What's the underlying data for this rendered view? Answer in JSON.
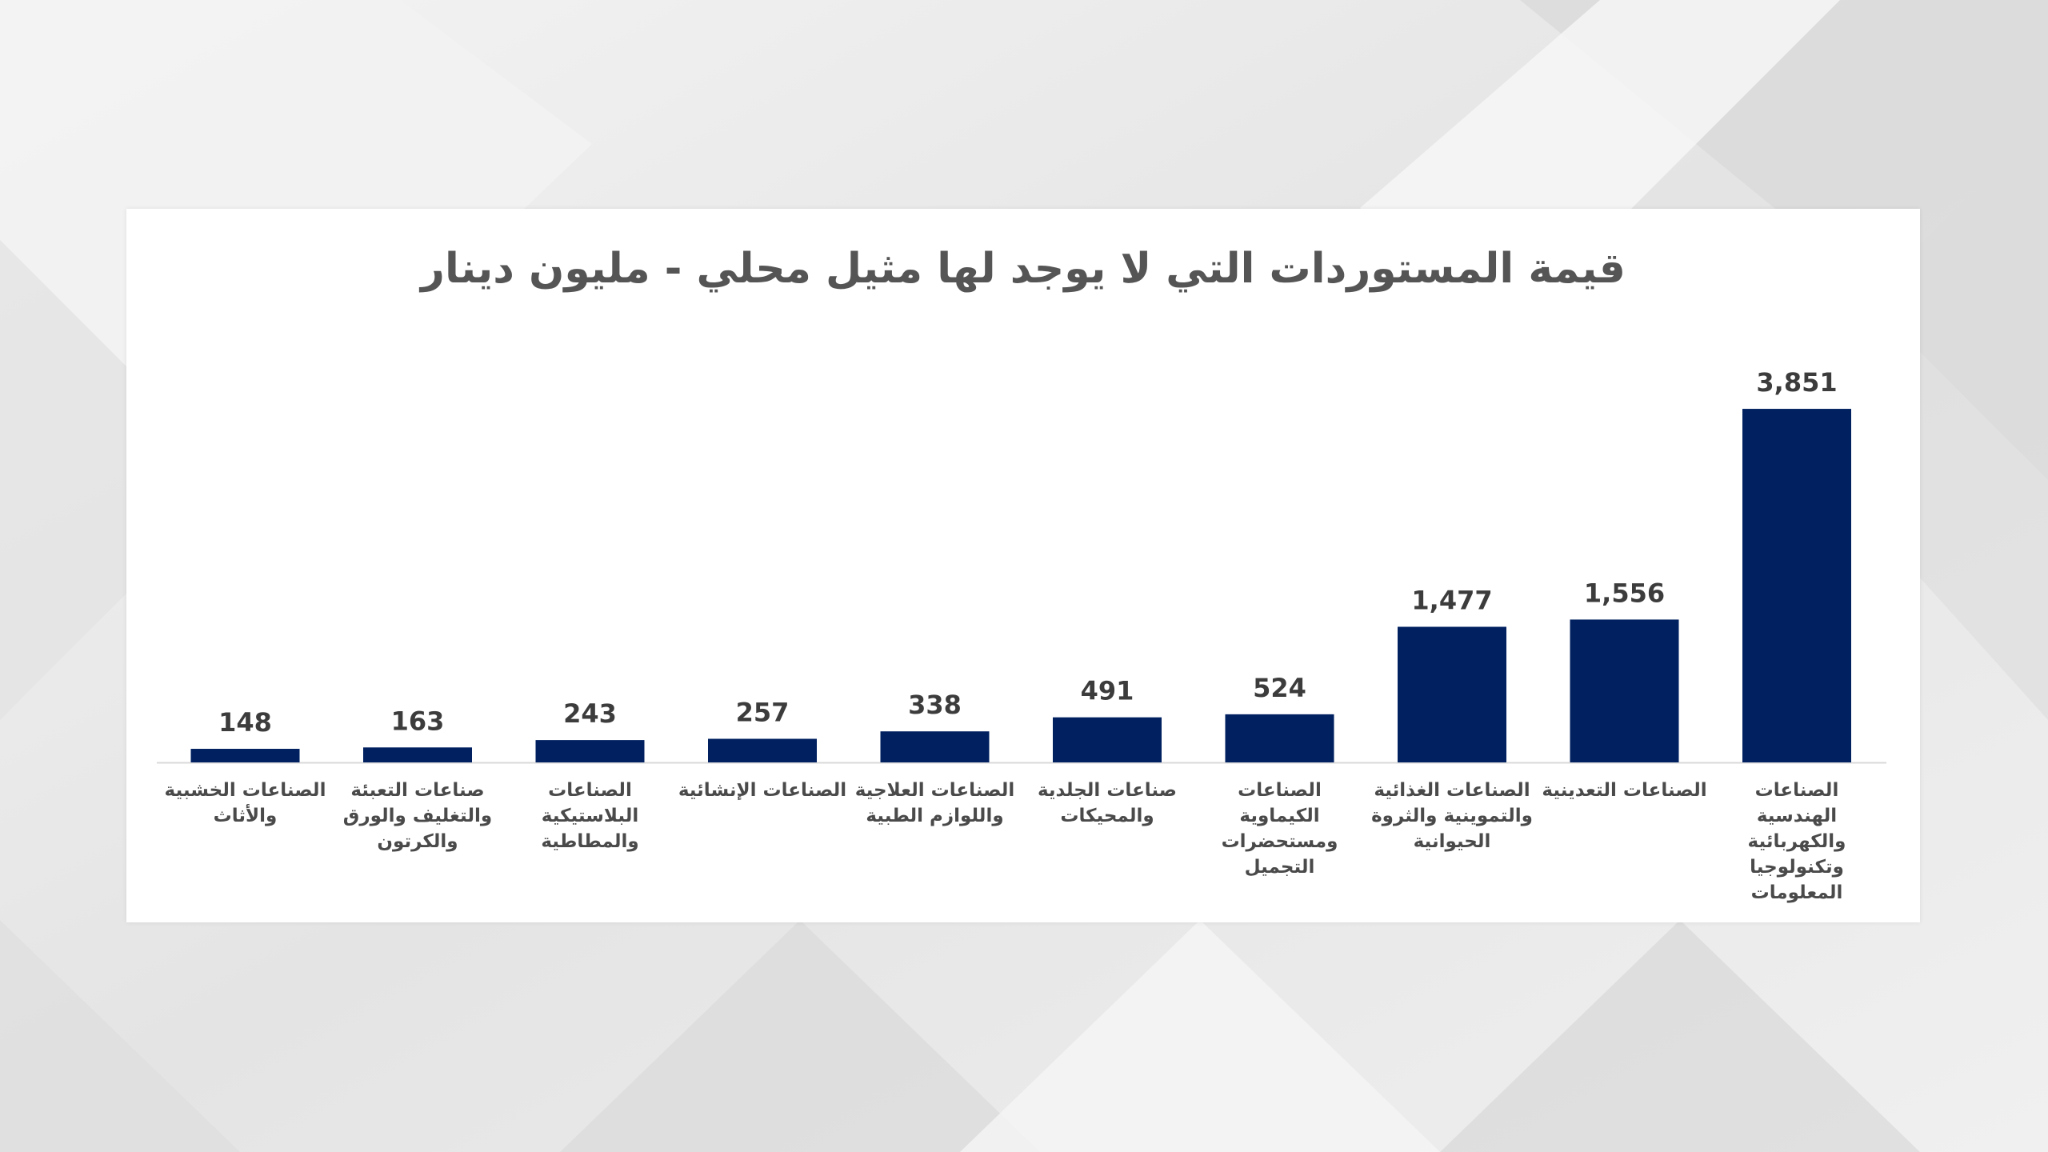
{
  "chart_data": {
    "type": "bar",
    "title": "قيمة المستوردات التي لا يوجد لها مثيل محلي - مليون دينار",
    "xlabel": "",
    "ylabel": "",
    "ylim": [
      0,
      4200
    ],
    "grid": false,
    "legend": "none",
    "bar_color": "#002060",
    "categories": [
      [
        "الصناعات",
        "الهندسية",
        "والكهربائية",
        "وتكنولوجيا",
        "المعلومات"
      ],
      [
        "الصناعات التعدينية"
      ],
      [
        "الصناعات الغذائية",
        "والتموينية والثروة",
        "الحيوانية"
      ],
      [
        "الصناعات",
        "الكيماوية",
        "ومستحضرات",
        "التجميل"
      ],
      [
        "صناعات الجلدية",
        "والمحيكات"
      ],
      [
        "الصناعات العلاجية",
        "واللوازم الطبية"
      ],
      [
        "الصناعات الإنشائية"
      ],
      [
        "الصناعات",
        "البلاستيكية",
        "والمطاطية"
      ],
      [
        "صناعات التعبئة",
        "والتغليف والورق",
        "والكرتون"
      ],
      [
        "الصناعات الخشبية",
        "والأثاث"
      ]
    ],
    "values": [
      3851,
      1556,
      1477,
      524,
      491,
      338,
      257,
      243,
      163,
      148
    ],
    "value_labels": [
      "3,851",
      "1,556",
      "1,477",
      "524",
      "491",
      "338",
      "257",
      "243",
      "163",
      "148"
    ]
  }
}
